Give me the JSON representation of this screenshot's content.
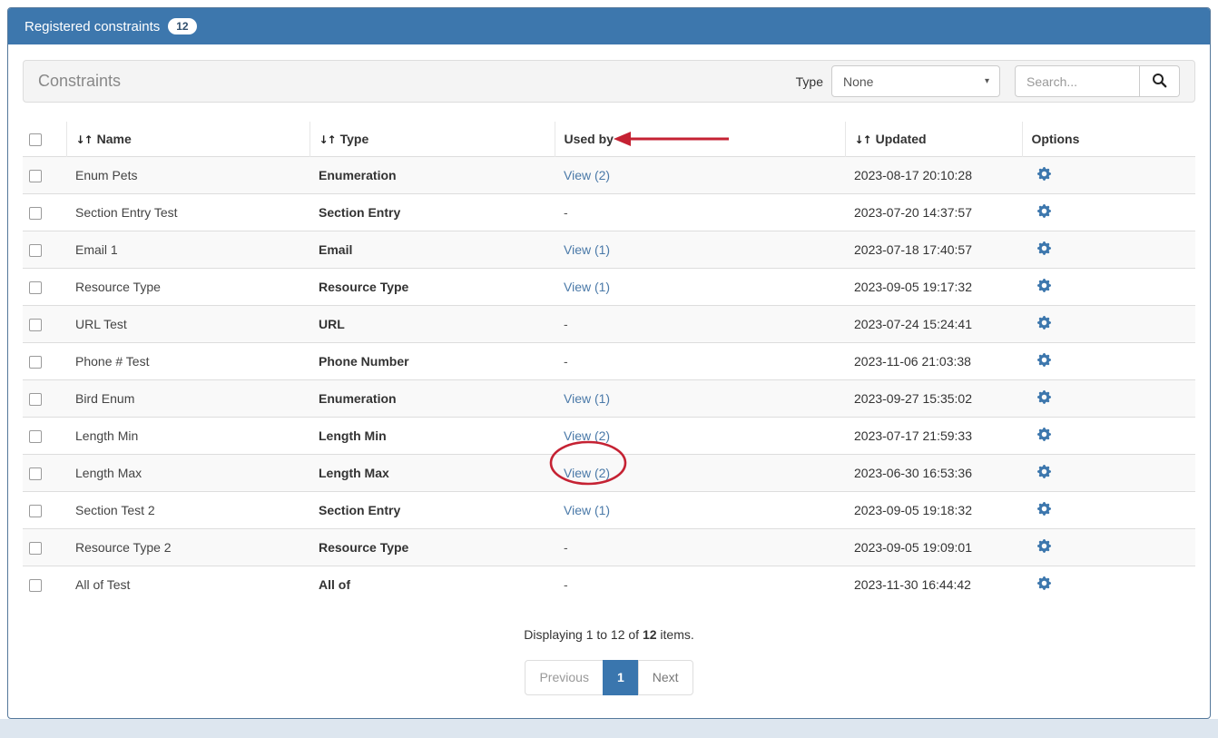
{
  "header": {
    "title": "Registered constraints",
    "count_badge": "12"
  },
  "toolbar": {
    "heading": "Constraints",
    "type_label": "Type",
    "type_selected": "None",
    "search_placeholder": "Search..."
  },
  "table": {
    "columns": [
      {
        "label": "",
        "sortable": false
      },
      {
        "label": "Name",
        "sortable": true
      },
      {
        "label": "Type",
        "sortable": true
      },
      {
        "label": "Used by",
        "sortable": false
      },
      {
        "label": "Updated",
        "sortable": true
      },
      {
        "label": "Options",
        "sortable": false
      }
    ],
    "options_icon": "gear-icon",
    "rows": [
      {
        "name": "Enum Pets",
        "type": "Enumeration",
        "used_by": "View (2)",
        "used_by_link": true,
        "updated": "2023-08-17 20:10:28"
      },
      {
        "name": "Section Entry Test",
        "type": "Section Entry",
        "used_by": "-",
        "used_by_link": false,
        "updated": "2023-07-20 14:37:57"
      },
      {
        "name": "Email 1",
        "type": "Email",
        "used_by": "View (1)",
        "used_by_link": true,
        "updated": "2023-07-18 17:40:57"
      },
      {
        "name": "Resource Type",
        "type": "Resource Type",
        "used_by": "View (1)",
        "used_by_link": true,
        "updated": "2023-09-05 19:17:32"
      },
      {
        "name": "URL Test",
        "type": "URL",
        "used_by": "-",
        "used_by_link": false,
        "updated": "2023-07-24 15:24:41"
      },
      {
        "name": "Phone # Test",
        "type": "Phone Number",
        "used_by": "-",
        "used_by_link": false,
        "updated": "2023-11-06 21:03:38"
      },
      {
        "name": "Bird Enum",
        "type": "Enumeration",
        "used_by": "View (1)",
        "used_by_link": true,
        "updated": "2023-09-27 15:35:02"
      },
      {
        "name": "Length Min",
        "type": "Length Min",
        "used_by": "View (2)",
        "used_by_link": true,
        "updated": "2023-07-17 21:59:33"
      },
      {
        "name": "Length Max",
        "type": "Length Max",
        "used_by": "View (2)",
        "used_by_link": true,
        "updated": "2023-06-30 16:53:36",
        "circled": true
      },
      {
        "name": "Section Test 2",
        "type": "Section Entry",
        "used_by": "View (1)",
        "used_by_link": true,
        "updated": "2023-09-05 19:18:32"
      },
      {
        "name": "Resource Type 2",
        "type": "Resource Type",
        "used_by": "-",
        "used_by_link": false,
        "updated": "2023-09-05 19:09:01"
      },
      {
        "name": "All of Test",
        "type": "All of",
        "used_by": "-",
        "used_by_link": false,
        "updated": "2023-11-30 16:44:42"
      }
    ]
  },
  "footer": {
    "summary_before": "Displaying 1 to 12 of ",
    "summary_total": "12",
    "summary_after": " items.",
    "pagination": {
      "previous_label": "Previous",
      "page_label": "1",
      "next_label": "Next"
    }
  },
  "annotations": {
    "color": "#c52233",
    "arrow_points_at": "Used by column header",
    "ellipse_around": "View (2) link in Length Max row"
  },
  "colors": {
    "header_bg": "#3d77ad",
    "link": "#4a79a8",
    "gear": "#3d77ad",
    "active_page_bg": "#3a76ae",
    "stripe": "#f9f9f9"
  }
}
